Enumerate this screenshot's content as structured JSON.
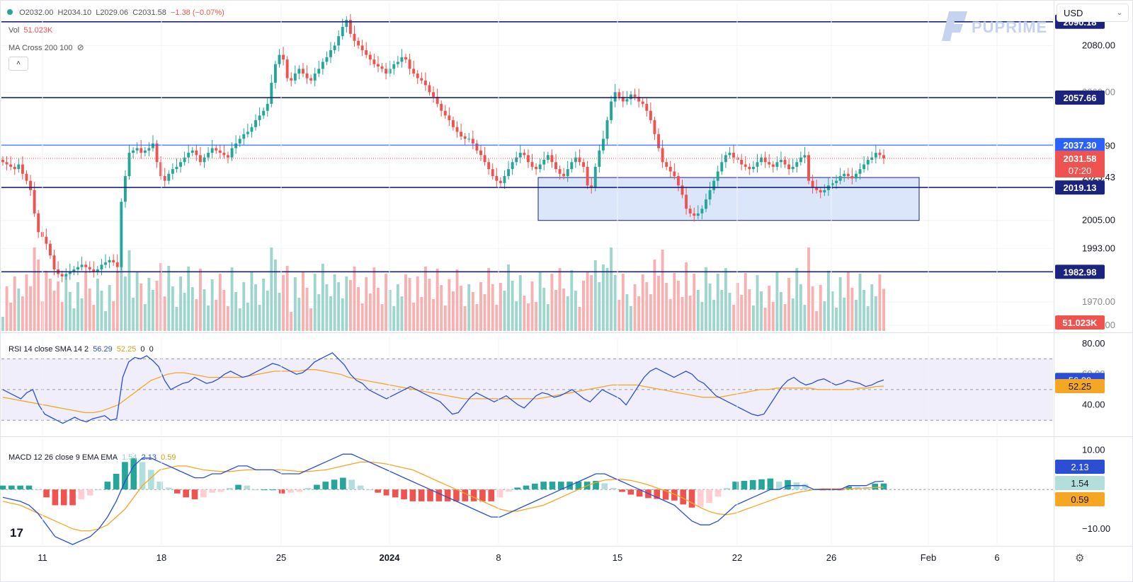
{
  "header": {
    "open": "O2032.00",
    "high": "H2034.10",
    "low": "L2029.06",
    "close": "C2031.58",
    "change": "−1.38 (−0.07%)",
    "vol_label": "Vol",
    "vol_value": "51.023K",
    "ma_label": "MA Cross 200 100",
    "rsi_label": "RSI 14 close SMA 14 2",
    "rsi_v1": "56.29",
    "rsi_v2": "52.25",
    "rsi_v3": "0",
    "rsi_v4": "0",
    "macd_label": "MACD 12 26 close 9 EMA EMA",
    "macd_hist": "1.54",
    "macd_line": "2.13",
    "macd_signal": "0.59"
  },
  "currency": "USD",
  "brand": "PUPRIME",
  "tv_logo": "17",
  "colors": {
    "up": "#26a69a",
    "down": "#ef5350",
    "level": "#1a237e",
    "level_light": "#2962ff",
    "rsi": "#2a4fd4",
    "signal": "#f5a623",
    "zone": "#dbe6fb"
  },
  "chart_data": [
    {
      "type": "candlestick",
      "title": "",
      "y_ticks": [
        "2080.00",
        "2036.90",
        "2023.43",
        "2005.00",
        "1993.00"
      ],
      "y_ticks_partial": [
        "2060.00",
        "1970.00",
        "1960.00"
      ],
      "x_ticks": [
        "11",
        "18",
        "25",
        "2024",
        "8",
        "15",
        "22",
        "26",
        "Feb",
        "6"
      ],
      "ylim": [
        1957,
        2098
      ],
      "horizontal_levels": [
        {
          "price": 2090.18,
          "label": "2090.18",
          "style": "dark"
        },
        {
          "price": 2057.66,
          "label": "2057.66",
          "style": "dark"
        },
        {
          "price": 2037.3,
          "label": "2037.30",
          "style": "blue"
        },
        {
          "price": 2019.13,
          "label": "2019.13",
          "style": "dark"
        },
        {
          "price": 1982.98,
          "label": "1982.98",
          "style": "dark"
        }
      ],
      "current_price": {
        "price": 2031.58,
        "label": "2031.58",
        "countdown": "07:20"
      },
      "zone": {
        "price_top": 2023.4,
        "price_bottom": 2005.0
      },
      "closes": [
        2030,
        2029,
        2028,
        2027,
        2029,
        2025,
        2022,
        2018,
        2008,
        2000,
        1998,
        1995,
        1990,
        1984,
        1982,
        1981,
        1982,
        1983,
        1984,
        1985,
        1986,
        1985,
        1984,
        1983,
        1984,
        1986,
        1987,
        1988,
        1987,
        1985,
        2013,
        2024,
        2034,
        2035,
        2036,
        2034,
        2035,
        2036,
        2038,
        2030,
        2024,
        2022,
        2025,
        2027,
        2028,
        2030,
        2032,
        2034,
        2035,
        2033,
        2030,
        2032,
        2034,
        2036,
        2035,
        2034,
        2033,
        2032,
        2036,
        2038,
        2040,
        2042,
        2043,
        2045,
        2048,
        2050,
        2052,
        2055,
        2064,
        2072,
        2076,
        2074,
        2066,
        2065,
        2068,
        2070,
        2068,
        2066,
        2065,
        2068,
        2070,
        2073,
        2075,
        2078,
        2080,
        2084,
        2088,
        2091,
        2085,
        2082,
        2080,
        2078,
        2076,
        2074,
        2072,
        2071,
        2070,
        2068,
        2070,
        2072,
        2073,
        2075,
        2074,
        2070,
        2068,
        2066,
        2065,
        2063,
        2060,
        2058,
        2055,
        2052,
        2050,
        2048,
        2045,
        2043,
        2041,
        2040,
        2040,
        2038,
        2035,
        2033,
        2030,
        2027,
        2024,
        2022,
        2021,
        2024,
        2027,
        2030,
        2032,
        2034,
        2033,
        2030,
        2028,
        2027,
        2029,
        2031,
        2033,
        2030,
        2027,
        2025,
        2024,
        2027,
        2030,
        2032,
        2030,
        2028,
        2020,
        2019,
        2028,
        2035,
        2040,
        2048,
        2056,
        2060,
        2058,
        2056,
        2057,
        2059,
        2058,
        2056,
        2055,
        2052,
        2048,
        2042,
        2036,
        2030,
        2028,
        2026,
        2024,
        2020,
        2016,
        2010,
        2008,
        2007,
        2008,
        2010,
        2014,
        2018,
        2022,
        2026,
        2030,
        2033,
        2034,
        2032,
        2031,
        2029,
        2028,
        2027,
        2028,
        2030,
        2032,
        2030,
        2029,
        2028,
        2030,
        2031,
        2029,
        2027,
        2028,
        2030,
        2032,
        2033,
        2022,
        2019,
        2018,
        2017,
        2018,
        2020,
        2021,
        2022,
        2024,
        2025,
        2024,
        2023,
        2025,
        2027,
        2029,
        2031,
        2032,
        2034,
        2033,
        2031.58
      ],
      "volume_last": "51.023K"
    },
    {
      "type": "line",
      "title": "RSI 14 close SMA 14 2",
      "ylim": [
        20,
        85
      ],
      "y_ticks": [
        "80.00",
        "40.00"
      ],
      "y_ticks_partial": [
        "60.00"
      ],
      "bands": [
        70,
        50,
        30
      ],
      "series": [
        {
          "name": "RSI",
          "last": 56.29,
          "values": [
            50,
            48,
            46,
            44,
            48,
            50,
            40,
            34,
            32,
            30,
            28,
            30,
            32,
            30,
            29,
            31,
            32,
            33,
            30,
            31,
            58,
            68,
            71,
            70,
            72,
            69,
            65,
            56,
            50,
            52,
            54,
            55,
            58,
            56,
            54,
            55,
            57,
            60,
            62,
            60,
            58,
            59,
            61,
            63,
            65,
            67,
            66,
            64,
            62,
            60,
            61,
            64,
            68,
            70,
            72,
            74,
            70,
            66,
            60,
            56,
            54,
            50,
            48,
            46,
            44,
            46,
            48,
            50,
            52,
            50,
            48,
            46,
            44,
            42,
            38,
            34,
            35,
            40,
            45,
            48,
            46,
            44,
            42,
            44,
            46,
            43,
            40,
            38,
            42,
            46,
            48,
            47,
            45,
            46,
            48,
            50,
            47,
            44,
            42,
            46,
            50,
            48,
            46,
            44,
            40,
            46,
            52,
            58,
            62,
            64,
            62,
            60,
            58,
            60,
            62,
            60,
            56,
            54,
            50,
            46,
            44,
            42,
            40,
            38,
            36,
            34,
            33,
            34,
            40,
            46,
            52,
            56,
            58,
            55,
            53,
            54,
            56,
            57,
            55,
            53,
            54,
            56,
            55,
            54,
            52,
            53,
            55,
            56.29
          ]
        },
        {
          "name": "SMA",
          "last": 52.25,
          "values": [
            45,
            44,
            43,
            42,
            41,
            40,
            39,
            38,
            37,
            36,
            35,
            35,
            36,
            38,
            40,
            44,
            48,
            52,
            56,
            58,
            60,
            61,
            61,
            60,
            59,
            58,
            58,
            58,
            58,
            58,
            59,
            60,
            61,
            62,
            62,
            62,
            62,
            63,
            63,
            62,
            61,
            60,
            58,
            57,
            56,
            55,
            54,
            53,
            52,
            51,
            50,
            49,
            48,
            47,
            46,
            45,
            44,
            44,
            44,
            44,
            44,
            44,
            44,
            44,
            44,
            44,
            45,
            46,
            47,
            48,
            49,
            50,
            51,
            52,
            53,
            53,
            53,
            53,
            52,
            51,
            50,
            49,
            48,
            47,
            46,
            45,
            45,
            45,
            46,
            47,
            48,
            49,
            50,
            50,
            51,
            51,
            51,
            51,
            51,
            50,
            50,
            50,
            50,
            50,
            51,
            51,
            52,
            52.25
          ]
        }
      ]
    },
    {
      "type": "bar",
      "title": "MACD 12 26 close 9 EMA EMA",
      "ylim": [
        -14,
        13
      ],
      "y_ticks": [
        "10.00",
        "−10.00"
      ],
      "series": [
        {
          "name": "MACD",
          "last": 2.13,
          "values": [
            -2,
            -2.5,
            -3,
            -4,
            -6,
            -9,
            -12,
            -13,
            -14,
            -13,
            -12,
            -10,
            -7,
            -3,
            2,
            6,
            8,
            8,
            7,
            6,
            5,
            4,
            3,
            3,
            4,
            4,
            5,
            6,
            6,
            5,
            5,
            5,
            4,
            4,
            4,
            5,
            6,
            7,
            8,
            9,
            9,
            8,
            7,
            6,
            5,
            4,
            3,
            2,
            1,
            0,
            -1,
            -2,
            -3,
            -4,
            -5,
            -6,
            -7,
            -7,
            -6,
            -5,
            -4,
            -3,
            -2,
            -1,
            0,
            1,
            2,
            3,
            4,
            4,
            3,
            2,
            1,
            0,
            -1,
            -2,
            -3,
            -4,
            -6,
            -8,
            -9,
            -9,
            -8,
            -6,
            -4,
            -3,
            -2,
            -1,
            0,
            0,
            1,
            1,
            1,
            0,
            0,
            0,
            0,
            1,
            1,
            1,
            2,
            2.13
          ]
        },
        {
          "name": "Signal",
          "last": 0.59,
          "values": [
            -3,
            -3.5,
            -4,
            -5,
            -6,
            -7,
            -8,
            -9,
            -10,
            -10.5,
            -10.5,
            -10,
            -9,
            -7,
            -5,
            -2,
            1,
            3,
            5,
            5.5,
            6,
            6,
            5.5,
            5,
            4.8,
            4.6,
            4.6,
            4.8,
            5,
            5,
            5,
            5,
            5,
            4.8,
            4.6,
            4.6,
            4.8,
            5,
            5.5,
            6,
            6.5,
            7,
            7,
            6.8,
            6.5,
            6,
            5.5,
            5,
            4,
            3,
            2,
            1,
            0,
            -1,
            -2,
            -3,
            -4,
            -5,
            -5.5,
            -5.5,
            -5,
            -4.5,
            -4,
            -3,
            -2,
            -1,
            0,
            1,
            1.8,
            2.4,
            2.6,
            2.6,
            2.3,
            1.8,
            1.2,
            0.4,
            -0.4,
            -1.2,
            -2.2,
            -3.4,
            -4.6,
            -5.6,
            -6.2,
            -6.4,
            -6,
            -5.2,
            -4.4,
            -3.6,
            -2.8,
            -2,
            -1.4,
            -0.8,
            -0.4,
            0,
            0.2,
            0.2,
            0.2,
            0.2,
            0.3,
            0.4,
            0.5,
            0.59
          ]
        }
      ],
      "histogram_last": 1.54
    }
  ]
}
